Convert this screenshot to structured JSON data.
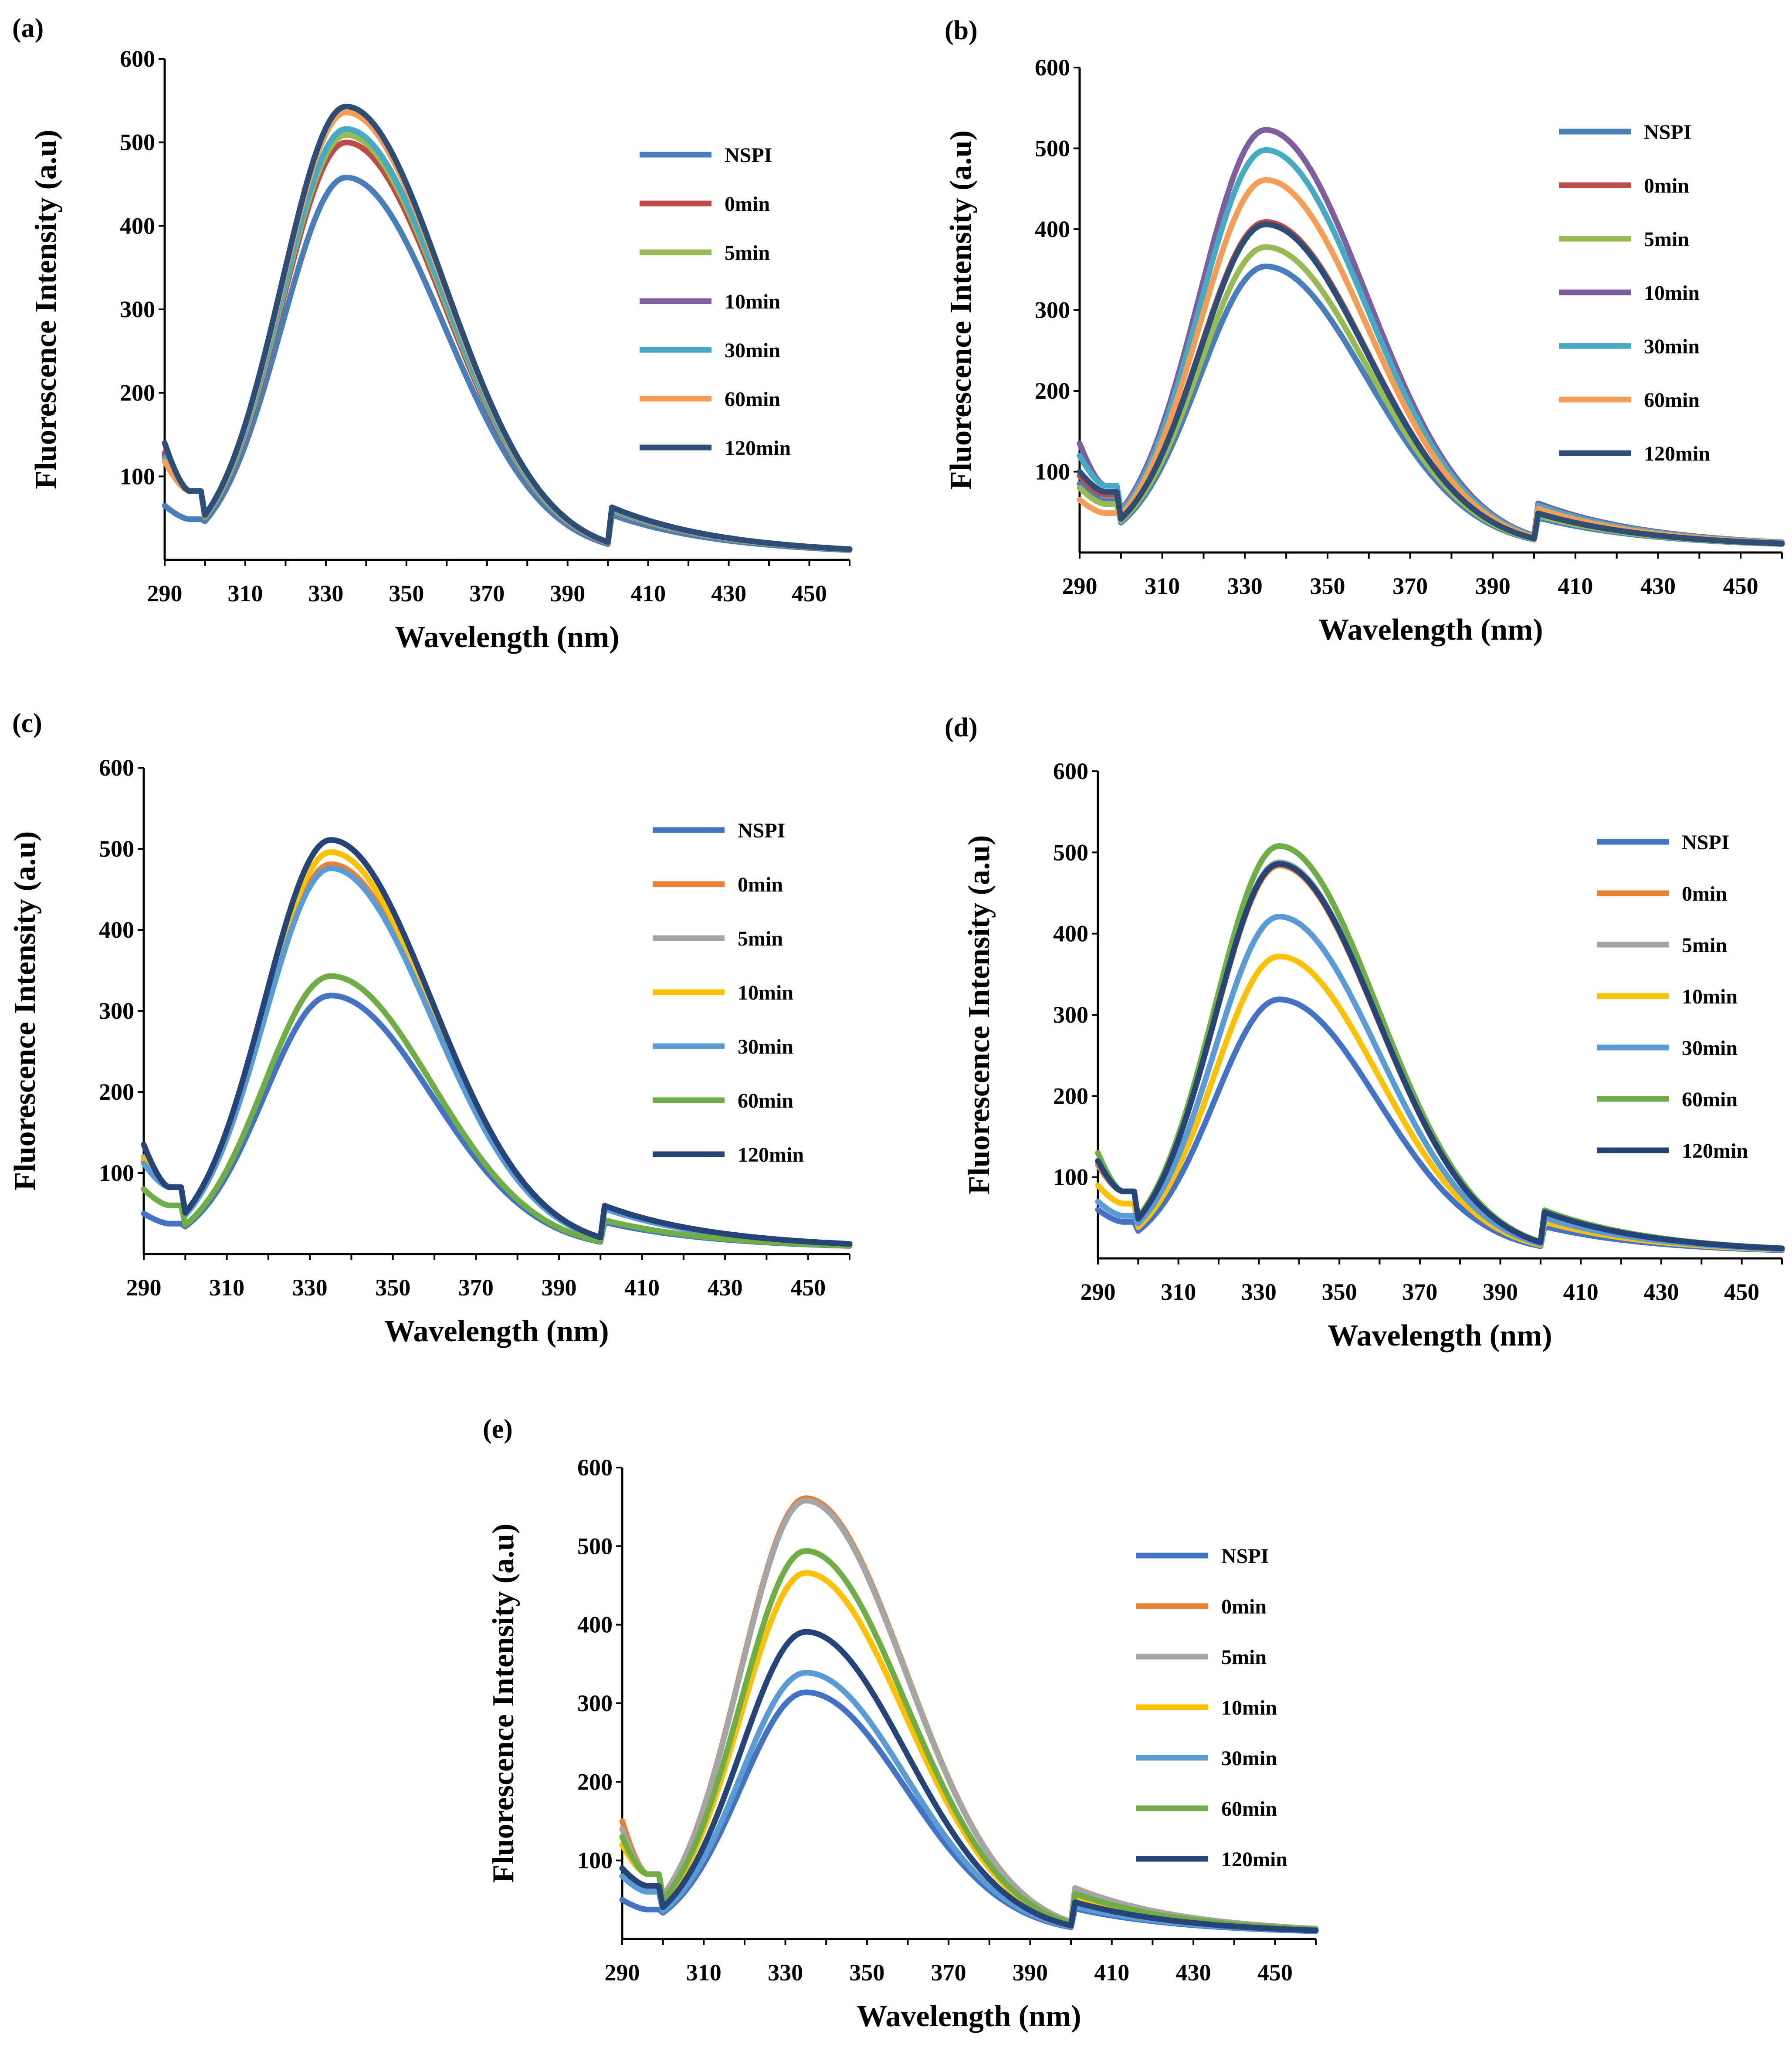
{
  "chart_data": [
    {
      "id": "a",
      "panel_label": "(a)",
      "type": "line",
      "xlabel": "Wavelength (nm)",
      "ylabel": "Fluorescence Intensity (a.u)",
      "xlim": [
        290,
        460
      ],
      "ylim": [
        0,
        600
      ],
      "xticks": [
        290,
        310,
        330,
        350,
        370,
        390,
        410,
        430,
        450
      ],
      "yticks": [
        100,
        200,
        300,
        400,
        500,
        600
      ],
      "series": [
        {
          "name": "NSPI",
          "color": "#4a7ebb",
          "peak": 452,
          "start": 65
        },
        {
          "name": "0min",
          "color": "#be4b48",
          "peak": 494,
          "start": 128
        },
        {
          "name": "5min",
          "color": "#98b954",
          "peak": 503,
          "start": 120
        },
        {
          "name": "10min",
          "color": "#7d5fa0",
          "peak": 510,
          "start": 125
        },
        {
          "name": "30min",
          "color": "#46aac5",
          "peak": 510,
          "start": 122
        },
        {
          "name": "60min",
          "color": "#f59d56",
          "peak": 530,
          "start": 118
        },
        {
          "name": "120min",
          "color": "#2c4d75",
          "peak": 537,
          "start": 140
        }
      ]
    },
    {
      "id": "b",
      "panel_label": "(b)",
      "type": "line",
      "xlabel": "Wavelength (nm)",
      "ylabel": "Fluorescence Intensity (a.u)",
      "xlim": [
        290,
        460
      ],
      "ylim": [
        0,
        600
      ],
      "xticks": [
        290,
        310,
        330,
        350,
        370,
        390,
        410,
        430,
        450
      ],
      "yticks": [
        100,
        200,
        300,
        400,
        500,
        600
      ],
      "series": [
        {
          "name": "NSPI",
          "color": "#4a7ebb",
          "peak": 348,
          "start": 85
        },
        {
          "name": "0min",
          "color": "#be4b48",
          "peak": 403,
          "start": 95
        },
        {
          "name": "5min",
          "color": "#98b954",
          "peak": 372,
          "start": 80
        },
        {
          "name": "10min",
          "color": "#7d5fa0",
          "peak": 517,
          "start": 135
        },
        {
          "name": "30min",
          "color": "#46aac5",
          "peak": 492,
          "start": 120
        },
        {
          "name": "60min",
          "color": "#f59d56",
          "peak": 455,
          "start": 65
        },
        {
          "name": "120min",
          "color": "#2c4d75",
          "peak": 400,
          "start": 100
        }
      ]
    },
    {
      "id": "c",
      "panel_label": "(c)",
      "type": "line",
      "xlabel": "Wavelength (nm)",
      "ylabel": "Fluorescence Intensity (a.u)",
      "xlim": [
        290,
        460
      ],
      "ylim": [
        0,
        600
      ],
      "xticks": [
        290,
        310,
        330,
        350,
        370,
        390,
        410,
        430,
        450
      ],
      "yticks": [
        100,
        200,
        300,
        400,
        500,
        600
      ],
      "series": [
        {
          "name": "NSPI",
          "color": "#4472c4",
          "peak": 313,
          "start": 50
        },
        {
          "name": "0min",
          "color": "#ed7d31",
          "peak": 475,
          "start": 115
        },
        {
          "name": "5min",
          "color": "#a5a5a5",
          "peak": 505,
          "start": 120
        },
        {
          "name": "10min",
          "color": "#ffc000",
          "peak": 490,
          "start": 118
        },
        {
          "name": "30min",
          "color": "#5b9bd5",
          "peak": 470,
          "start": 112
        },
        {
          "name": "60min",
          "color": "#70ad47",
          "peak": 337,
          "start": 80
        },
        {
          "name": "120min",
          "color": "#264478",
          "peak": 505,
          "start": 135
        }
      ]
    },
    {
      "id": "d",
      "panel_label": "(d)",
      "type": "line",
      "xlabel": "Wavelength (nm)",
      "ylabel": "Fluorescence Intensity (a.u)",
      "xlim": [
        290,
        460
      ],
      "ylim": [
        0,
        600
      ],
      "xticks": [
        290,
        310,
        330,
        350,
        370,
        390,
        410,
        430,
        450
      ],
      "yticks": [
        100,
        200,
        300,
        400,
        500,
        600
      ],
      "series": [
        {
          "name": "NSPI",
          "color": "#4472c4",
          "peak": 313,
          "start": 60
        },
        {
          "name": "0min",
          "color": "#ed7d31",
          "peak": 478,
          "start": 115
        },
        {
          "name": "5min",
          "color": "#a5a5a5",
          "peak": 482,
          "start": 118
        },
        {
          "name": "10min",
          "color": "#ffc000",
          "peak": 366,
          "start": 90
        },
        {
          "name": "30min",
          "color": "#5b9bd5",
          "peak": 415,
          "start": 70
        },
        {
          "name": "60min",
          "color": "#70ad47",
          "peak": 502,
          "start": 130
        },
        {
          "name": "120min",
          "color": "#264478",
          "peak": 480,
          "start": 120
        }
      ]
    },
    {
      "id": "e",
      "panel_label": "(e)",
      "type": "line",
      "xlabel": "Wavelength (nm)",
      "ylabel": "Fluorescence Intensity (a.u)",
      "xlim": [
        290,
        460
      ],
      "ylim": [
        0,
        600
      ],
      "xticks": [
        290,
        310,
        330,
        350,
        370,
        390,
        410,
        430,
        450
      ],
      "yticks": [
        100,
        200,
        300,
        400,
        500,
        600
      ],
      "series": [
        {
          "name": "NSPI",
          "color": "#4472c4",
          "peak": 308,
          "start": 50
        },
        {
          "name": "0min",
          "color": "#ed7d31",
          "peak": 555,
          "start": 150
        },
        {
          "name": "5min",
          "color": "#a5a5a5",
          "peak": 552,
          "start": 140
        },
        {
          "name": "10min",
          "color": "#ffc000",
          "peak": 460,
          "start": 120
        },
        {
          "name": "30min",
          "color": "#5b9bd5",
          "peak": 333,
          "start": 80
        },
        {
          "name": "60min",
          "color": "#70ad47",
          "peak": 488,
          "start": 130
        },
        {
          "name": "120min",
          "color": "#264478",
          "peak": 385,
          "start": 90
        }
      ]
    }
  ]
}
